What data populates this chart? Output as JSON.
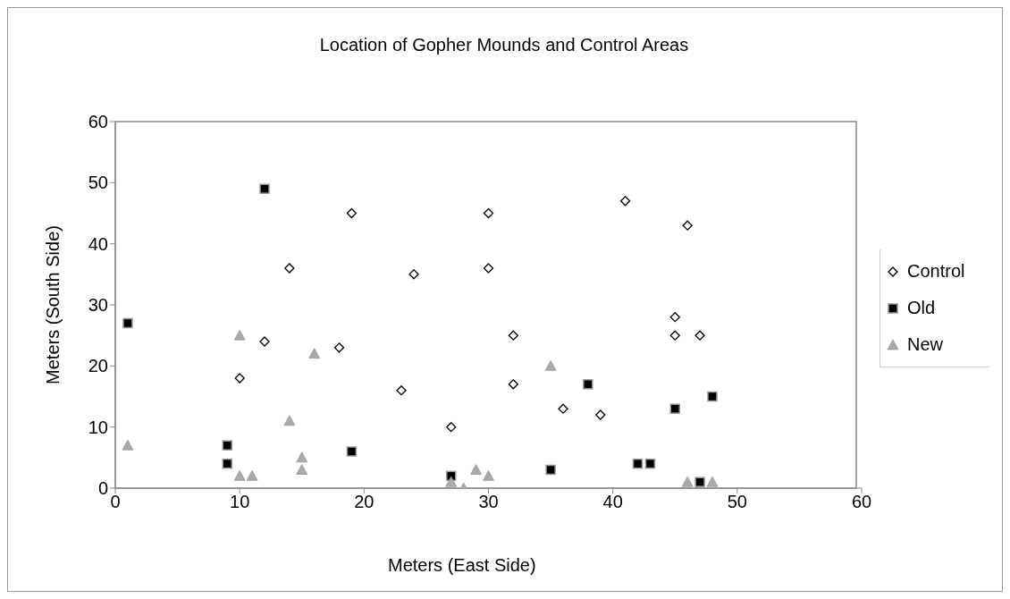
{
  "chart_data": {
    "type": "scatter",
    "title": "Location of Gopher Mounds and Control Areas",
    "xlabel": "Meters (East Side)",
    "ylabel": "Meters (South Side)",
    "xlim": [
      0,
      60
    ],
    "xticks": [
      0,
      10,
      20,
      30,
      40,
      50,
      60
    ],
    "ylim": [
      0,
      60
    ],
    "yticks": [
      0,
      10,
      20,
      30,
      40,
      50,
      60
    ],
    "grid": false,
    "legend": "right",
    "series": [
      {
        "name": "Control",
        "color": "#000000",
        "marker": "diamond",
        "x": [
          19,
          14,
          24,
          12,
          10,
          18,
          23,
          27,
          30,
          30,
          32,
          32,
          36,
          39,
          41,
          46,
          45,
          45,
          47
        ],
        "values": [
          45,
          36,
          35,
          24,
          18,
          23,
          16,
          10,
          45,
          36,
          25,
          17,
          13,
          12,
          47,
          43,
          28,
          25,
          25
        ]
      },
      {
        "name": "Old",
        "color": "#000000",
        "marker": "square",
        "x": [
          1,
          12,
          9,
          9,
          19,
          27,
          35,
          38,
          42,
          43,
          45,
          47,
          48
        ],
        "values": [
          27,
          49,
          7,
          4,
          6,
          2,
          3,
          17,
          4,
          4,
          13,
          1,
          15
        ]
      },
      {
        "name": "New",
        "color": "#aaaaaa",
        "marker": "triangle",
        "x": [
          1,
          10,
          10,
          11,
          14,
          15,
          15,
          16,
          27,
          28,
          29,
          30,
          35,
          46,
          48
        ],
        "values": [
          7,
          25,
          2,
          2,
          11,
          5,
          3,
          22,
          1,
          0,
          3,
          2,
          20,
          1,
          1
        ]
      }
    ]
  }
}
